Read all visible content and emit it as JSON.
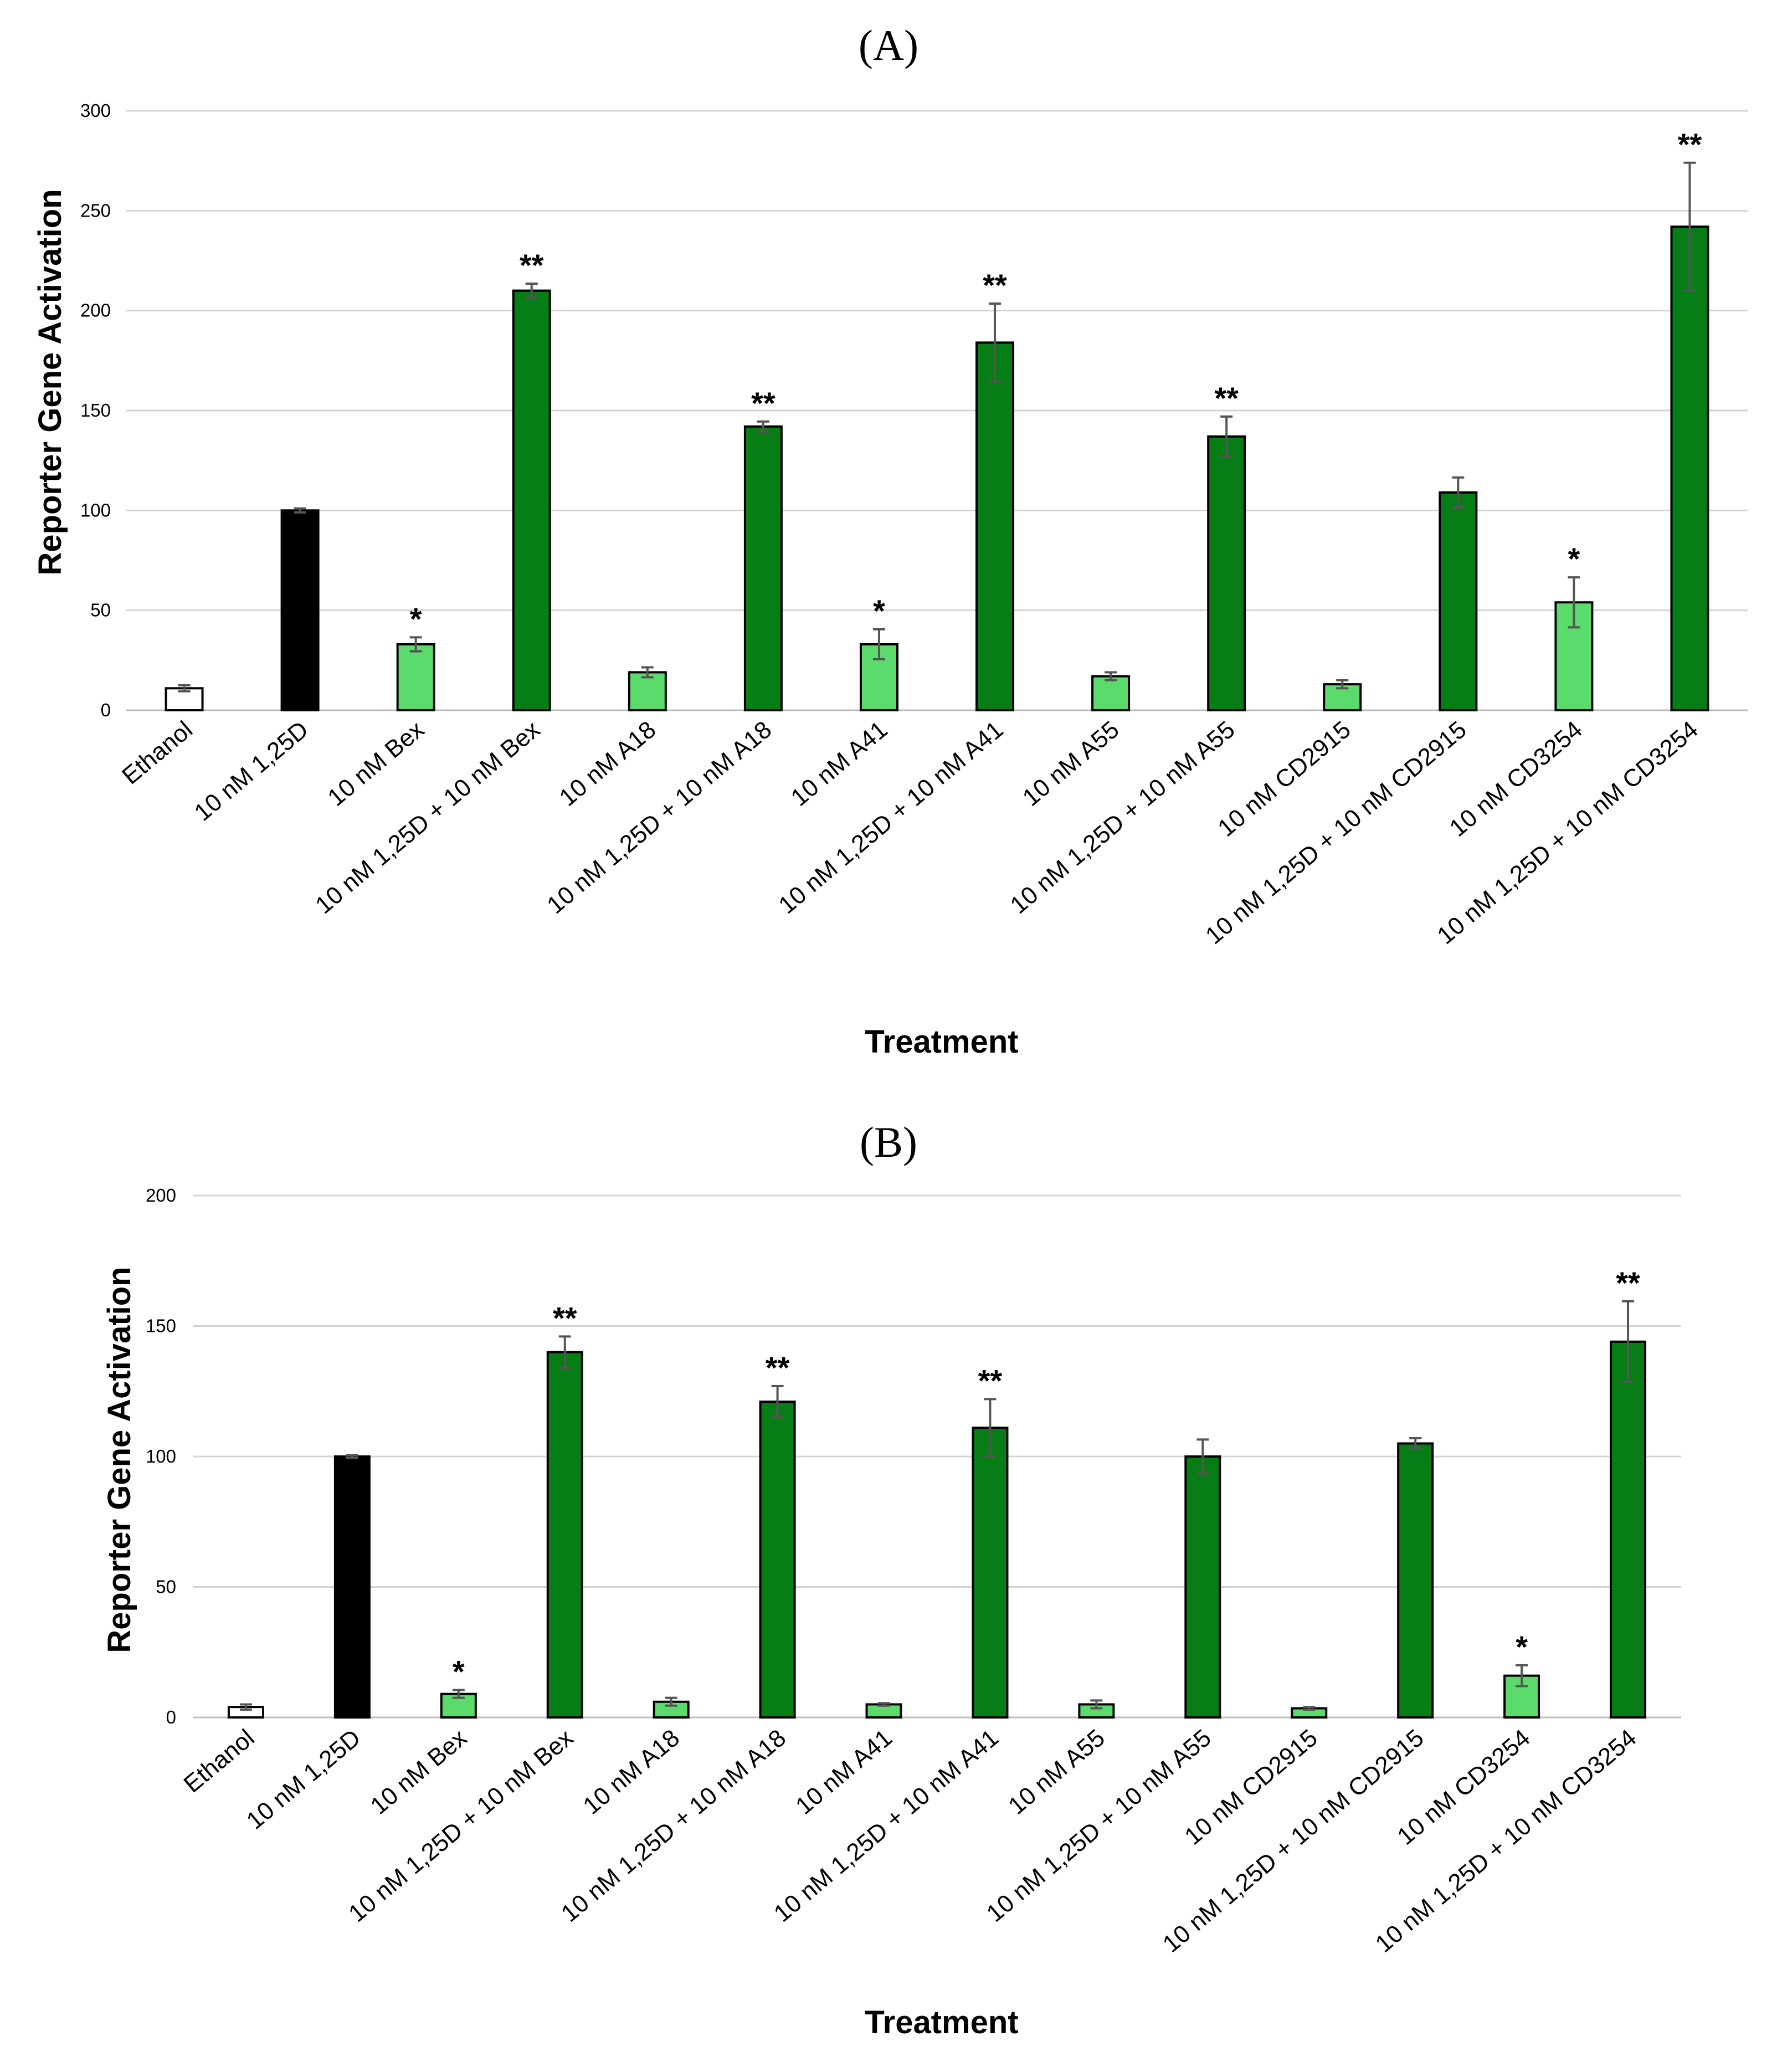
{
  "colors": {
    "white_bar": "#ffffff",
    "black_bar": "#000000",
    "light_green": "#5cdb6d",
    "dark_green": "#067d15"
  },
  "chart_data": [
    {
      "type": "bar",
      "panel_label": "A",
      "title": "(A)",
      "xlabel": "Treatment",
      "ylabel": "Reporter Gene Activation",
      "ylim": [
        0,
        300
      ],
      "yticks": [
        0,
        50,
        100,
        150,
        200,
        250,
        300
      ],
      "grid": true,
      "categories": [
        "Ethanol",
        "10 nM 1,25D",
        "10 nM Bex",
        "10 nM 1,25D + 10 nM Bex",
        "10 nM A18",
        "10 nM 1,25D + 10 nM A18",
        "10 nM A41",
        "10 nM 1,25D + 10 nM A41",
        "10 nM A55",
        "10 nM 1,25D + 10 nM A55",
        "10 nM CD2915",
        "10 nM 1,25D + 10 nM CD2915",
        "10 nM CD3254",
        "10 nM 1,25D + 10 nM CD3254"
      ],
      "values": [
        11,
        100,
        33,
        210,
        19,
        142,
        33,
        184,
        17,
        137,
        13,
        109,
        54,
        242
      ],
      "errors": [
        1.5,
        1,
        3.5,
        3.5,
        2.5,
        2.5,
        7.5,
        19.5,
        2,
        10,
        2,
        7.5,
        12.5,
        32
      ],
      "fills": [
        "white_bar",
        "black_bar",
        "light_green",
        "dark_green",
        "light_green",
        "dark_green",
        "light_green",
        "dark_green",
        "light_green",
        "dark_green",
        "light_green",
        "dark_green",
        "light_green",
        "dark_green"
      ],
      "significance": [
        "",
        "",
        "*",
        "**",
        "",
        "**",
        "*",
        "**",
        "",
        "**",
        "",
        "",
        "*",
        "**"
      ]
    },
    {
      "type": "bar",
      "panel_label": "B",
      "title": "(B)",
      "xlabel": "Treatment",
      "ylabel": "Reporter Gene Activation",
      "ylim": [
        0,
        200
      ],
      "yticks": [
        0,
        50,
        100,
        150,
        200
      ],
      "grid": true,
      "categories": [
        "Ethanol",
        "10 nM 1,25D",
        "10 nM Bex",
        "10 nM 1,25D + 10 nM Bex",
        "10 nM A18",
        "10 nM 1,25D + 10 nM A18",
        "10 nM A41",
        "10 nM 1,25D + 10 nM A41",
        "10 nM A55",
        "10 nM 1,25D + 10 nM A55",
        "10 nM CD2915",
        "10 nM 1,25D + 10 nM CD2915",
        "10 nM CD3254",
        "10 nM 1,25D + 10 nM CD3254"
      ],
      "values": [
        4,
        100,
        9,
        140,
        6,
        121,
        5,
        111,
        5,
        100,
        3.5,
        105,
        16,
        144
      ],
      "errors": [
        1,
        0.5,
        1.5,
        6,
        1.5,
        6,
        0.5,
        11,
        1.5,
        6.5,
        0.5,
        2,
        4,
        15.5
      ],
      "fills": [
        "white_bar",
        "black_bar",
        "light_green",
        "dark_green",
        "light_green",
        "dark_green",
        "light_green",
        "dark_green",
        "light_green",
        "dark_green",
        "light_green",
        "dark_green",
        "light_green",
        "dark_green"
      ],
      "significance": [
        "",
        "",
        "*",
        "**",
        "",
        "**",
        "",
        "**",
        "",
        "",
        "",
        "",
        "*",
        "**"
      ]
    }
  ]
}
